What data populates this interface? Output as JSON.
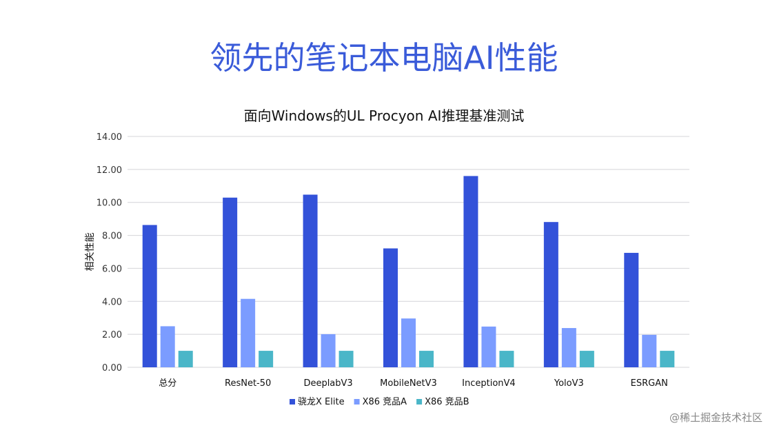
{
  "main_title": "领先的笔记本电脑AI性能",
  "watermark": "@稀土掘金技术社区",
  "chart_data": {
    "type": "bar",
    "title": "面向Windows的UL Procyon AI推理基准测试",
    "xlabel": "",
    "ylabel": "相关性能",
    "ylim": [
      0,
      14
    ],
    "yticks": [
      "0.00",
      "2.00",
      "4.00",
      "6.00",
      "8.00",
      "10.00",
      "12.00",
      "14.00"
    ],
    "grid": true,
    "legend_position": "bottom",
    "categories": [
      "总分",
      "ResNet-50",
      "DeeplabV3",
      "MobileNetV3",
      "InceptionV4",
      "YoloV3",
      "ESRGAN"
    ],
    "series": [
      {
        "name": "骁龙X Elite",
        "color": "#3352d9",
        "values": [
          8.63,
          10.29,
          10.47,
          7.21,
          11.6,
          8.81,
          6.94
        ]
      },
      {
        "name": "X86 竞品A",
        "color": "#7b9cff",
        "values": [
          2.49,
          4.15,
          2.01,
          2.96,
          2.47,
          2.38,
          1.97
        ]
      },
      {
        "name": "X86 竞品B",
        "color": "#4ab6c8",
        "values": [
          1.0,
          1.0,
          1.0,
          1.0,
          1.0,
          1.0,
          1.0
        ]
      }
    ]
  }
}
